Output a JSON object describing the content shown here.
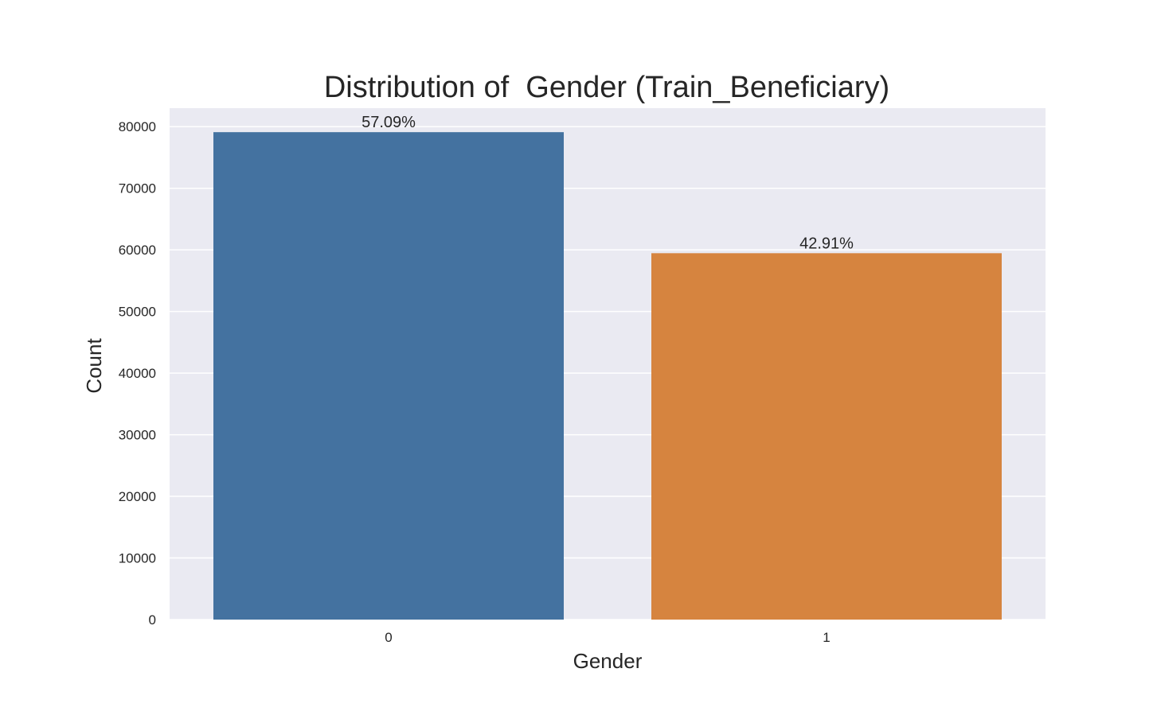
{
  "chart_data": {
    "type": "bar",
    "title": "Distribution of  Gender (Train_Beneficiary)",
    "xlabel": "Gender",
    "ylabel": "Count",
    "categories": [
      "0",
      "1"
    ],
    "values": [
      79106,
      59462
    ],
    "data_labels": [
      "57.09%",
      "42.91%"
    ],
    "colors": [
      "#4472a0",
      "#d6843f"
    ],
    "ylim": [
      0,
      83000
    ],
    "yticks": [
      0,
      10000,
      20000,
      30000,
      40000,
      50000,
      60000,
      70000,
      80000
    ],
    "ytick_labels": [
      "0",
      "10000",
      "20000",
      "30000",
      "40000",
      "50000",
      "60000",
      "70000",
      "80000"
    ],
    "grid": true,
    "background": "#eaeaf2",
    "grid_color": "#ffffff"
  }
}
